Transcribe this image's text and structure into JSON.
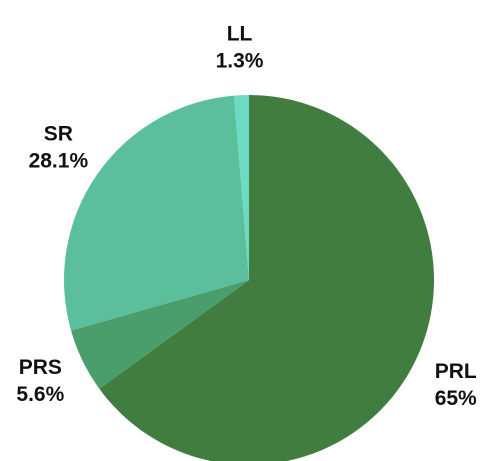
{
  "chart_data": {
    "type": "pie",
    "categories": [
      "PRL",
      "PRS",
      "SR",
      "LL"
    ],
    "values": [
      65,
      5.6,
      28.1,
      1.3
    ],
    "value_labels": [
      "65%",
      "5.6%",
      "28.1%",
      "1.3%"
    ],
    "colors": [
      "#417d3f",
      "#4a9e6b",
      "#5bbf9b",
      "#6ddbc4"
    ]
  }
}
